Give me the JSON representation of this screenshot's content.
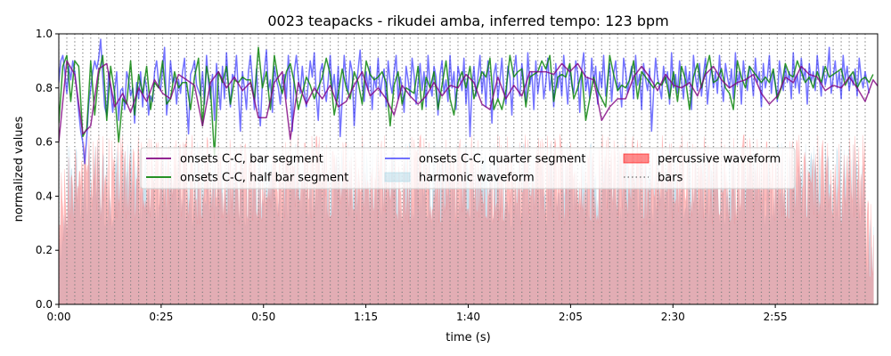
{
  "chart_data": {
    "type": "line",
    "title": "0023 teapacks - rikudei amba, inferred tempo: 123 bpm",
    "xlabel": "time (s)",
    "ylabel": "normalized values",
    "xlim": [
      0,
      200
    ],
    "ylim": [
      0,
      1.0
    ],
    "x_ticks": [
      0,
      25,
      50,
      75,
      100,
      125,
      150,
      175
    ],
    "x_tick_labels": [
      "0:00",
      "0:25",
      "0:50",
      "1:15",
      "1:40",
      "2:05",
      "2:30",
      "2:55"
    ],
    "y_ticks": [
      0.0,
      0.2,
      0.4,
      0.6,
      0.8,
      1.0
    ],
    "y_tick_labels": [
      "0.0",
      "0.2",
      "0.4",
      "0.6",
      "0.8",
      "1.0"
    ],
    "grid": false,
    "legend_placement": "center",
    "legend": [
      {
        "label": "onsets C-C, bar segment",
        "kind": "line",
        "color": "#800080"
      },
      {
        "label": "onsets C-C, half bar segment",
        "kind": "line",
        "color": "#008000"
      },
      {
        "label": "onsets C-C, quarter segment",
        "kind": "line",
        "color": "#0000ff"
      },
      {
        "label": "harmonic waveform",
        "kind": "patch",
        "color": "#add8e6"
      },
      {
        "label": "percussive waveform",
        "kind": "patch",
        "color": "#ff0000"
      },
      {
        "label": "bars",
        "kind": "dotted",
        "color": "#808080"
      }
    ],
    "bars": {
      "start": 0,
      "end": 197.5,
      "interval": 1.95
    },
    "series": [
      {
        "name": "onsets C-C, bar segment",
        "color": "#800080",
        "x0": 0,
        "dx": 1.95,
        "values": [
          0.6,
          0.9,
          0.85,
          0.63,
          0.66,
          0.87,
          0.89,
          0.73,
          0.78,
          0.71,
          0.8,
          0.75,
          0.83,
          0.78,
          0.76,
          0.85,
          0.83,
          0.81,
          0.66,
          0.82,
          0.86,
          0.8,
          0.84,
          0.79,
          0.82,
          0.69,
          0.69,
          0.82,
          0.86,
          0.61,
          0.82,
          0.74,
          0.8,
          0.76,
          0.81,
          0.73,
          0.75,
          0.81,
          0.86,
          0.77,
          0.8,
          0.76,
          0.7,
          0.81,
          0.77,
          0.74,
          0.77,
          0.82,
          0.77,
          0.81,
          0.8,
          0.85,
          0.82,
          0.74,
          0.72,
          0.84,
          0.76,
          0.81,
          0.77,
          0.86,
          0.86,
          0.86,
          0.85,
          0.89,
          0.86,
          0.89,
          0.84,
          0.83,
          0.68,
          0.73,
          0.76,
          0.76,
          0.84,
          0.88,
          0.84,
          0.79,
          0.85,
          0.81,
          0.8,
          0.82,
          0.77,
          0.85,
          0.88,
          0.83,
          0.8,
          0.82,
          0.83,
          0.85,
          0.78,
          0.74,
          0.77,
          0.84,
          0.82,
          0.88,
          0.85,
          0.84,
          0.79,
          0.81,
          0.8,
          0.84,
          0.8,
          0.75,
          0.83,
          0.79,
          0.77,
          0.85,
          0.83,
          0.78,
          0.84,
          0.8,
          0.82,
          0.73,
          0.74,
          0.78,
          0.85,
          0.8,
          0.83,
          0.86,
          0.81,
          0.84,
          0.82,
          0.87,
          0.79,
          0.86,
          0.85,
          0.82,
          0.8,
          0.86,
          0.83,
          0.84,
          0.82,
          0.83,
          0.75,
          0.73,
          0.8,
          0.84,
          0.86,
          0.8,
          0.81,
          0.85,
          0.82,
          0.78,
          0.84,
          0.83,
          0.82,
          0.8,
          0.85,
          0.82,
          0.86,
          0.81,
          0.86,
          0.84,
          0.82,
          0.83,
          0.79,
          0.85,
          0.86,
          0.83,
          0.8,
          0.82,
          0.86,
          0.84,
          0.85,
          0.79,
          0.81
        ]
      },
      {
        "name": "onsets C-C, half bar segment",
        "color": "#008000",
        "x0": 0,
        "dx": 0.975,
        "values": [
          0.67,
          0.88,
          0.92,
          0.75,
          0.9,
          0.88,
          0.62,
          0.65,
          0.9,
          0.7,
          0.85,
          0.92,
          0.68,
          0.88,
          0.78,
          0.6,
          0.76,
          0.74,
          0.9,
          0.7,
          0.85,
          0.78,
          0.88,
          0.72,
          0.82,
          0.8,
          0.9,
          0.74,
          0.76,
          0.86,
          0.8,
          0.82,
          0.82,
          0.72,
          0.84,
          0.91,
          0.66,
          0.88,
          0.8,
          0.55,
          0.86,
          0.82,
          0.88,
          0.74,
          0.83,
          0.82,
          0.84,
          0.83,
          0.83,
          0.76,
          0.95,
          0.8,
          0.86,
          0.72,
          0.92,
          0.83,
          0.78,
          0.86,
          0.89,
          0.82,
          0.72,
          0.78,
          0.84,
          0.81,
          0.76,
          0.8,
          0.84,
          0.91,
          0.85,
          0.7,
          0.78,
          0.87,
          0.8,
          0.76,
          0.86,
          0.82,
          0.74,
          0.9,
          0.85,
          0.83,
          0.84,
          0.86,
          0.82,
          0.66,
          0.81,
          0.86,
          0.74,
          0.8,
          0.79,
          0.78,
          0.88,
          0.72,
          0.84,
          0.8,
          0.86,
          0.72,
          0.81,
          0.9,
          0.76,
          0.7,
          0.82,
          0.86,
          0.8,
          0.88,
          0.76,
          0.81,
          0.86,
          0.84,
          0.91,
          0.72,
          0.76,
          0.72,
          0.79,
          0.92,
          0.84,
          0.86,
          0.87,
          0.73,
          0.84,
          0.85,
          0.86,
          0.9,
          0.87,
          0.92,
          0.75,
          0.84,
          0.85,
          0.84,
          0.89,
          0.76,
          0.8,
          0.86,
          0.68,
          0.76,
          0.84,
          0.79,
          0.76,
          0.73,
          0.92,
          0.85,
          0.79,
          0.81,
          0.8,
          0.83,
          0.9,
          0.76,
          0.86,
          0.84,
          0.82,
          0.8,
          0.82,
          0.81,
          0.84,
          0.76,
          0.86,
          0.75,
          0.88,
          0.83,
          0.72,
          0.84,
          0.89,
          0.8,
          0.86,
          0.92,
          0.82,
          0.83,
          0.87,
          0.8,
          0.78,
          0.72,
          0.9,
          0.84,
          0.8,
          0.88,
          0.86,
          0.84,
          0.82,
          0.84,
          0.82,
          0.87,
          0.76,
          0.8,
          0.89,
          0.85,
          0.84,
          0.9,
          0.86,
          0.82,
          0.84,
          0.8,
          0.86,
          0.82,
          0.88,
          0.84,
          0.85,
          0.86,
          0.87,
          0.81,
          0.84,
          0.86,
          0.8,
          0.83,
          0.84,
          0.82,
          0.85
        ]
      },
      {
        "name": "onsets C-C, quarter segment",
        "color": "#0000ff",
        "x0": 0,
        "dx": 0.4875,
        "values": [
          0.82,
          0.9,
          0.92,
          0.86,
          0.78,
          0.88,
          0.83,
          0.9,
          0.86,
          0.79,
          0.71,
          0.64,
          0.6,
          0.52,
          0.62,
          0.74,
          0.8,
          0.86,
          0.9,
          0.87,
          0.91,
          0.98,
          0.84,
          0.73,
          0.7,
          0.86,
          0.8,
          0.71,
          0.79,
          0.86,
          0.68,
          0.79,
          0.8,
          0.72,
          0.86,
          0.83,
          0.77,
          0.8,
          0.67,
          0.82,
          0.76,
          0.86,
          0.73,
          0.84,
          0.8,
          0.7,
          0.77,
          0.75,
          0.86,
          0.9,
          0.82,
          0.79,
          0.87,
          0.95,
          0.7,
          0.78,
          0.9,
          0.82,
          0.84,
          0.74,
          0.83,
          0.78,
          0.86,
          0.91,
          0.74,
          0.63,
          0.85,
          0.87,
          0.9,
          0.81,
          0.79,
          0.77,
          0.86,
          0.74,
          0.92,
          0.82,
          0.76,
          0.85,
          0.68,
          0.89,
          0.8,
          0.72,
          0.88,
          0.76,
          0.93,
          0.8,
          0.73,
          0.85,
          0.83,
          0.92,
          0.78,
          0.64,
          0.86,
          0.8,
          0.72,
          0.86,
          0.92,
          0.83,
          0.72,
          0.87,
          0.74,
          0.66,
          0.82,
          0.86,
          0.94,
          0.79,
          0.83,
          0.71,
          0.88,
          0.83,
          0.8,
          0.74,
          0.84,
          0.85,
          0.76,
          0.92,
          0.81,
          0.64,
          0.86,
          0.92,
          0.84,
          0.78,
          0.88,
          0.79,
          0.73,
          0.82,
          0.9,
          0.84,
          0.93,
          0.77,
          0.68,
          0.86,
          0.89,
          0.8,
          0.75,
          0.83,
          0.92,
          0.79,
          0.85,
          0.74,
          0.88,
          0.62,
          0.76,
          0.92,
          0.83,
          0.78,
          0.9,
          0.86,
          0.66,
          0.8,
          0.87,
          0.94,
          0.81,
          0.75,
          0.86,
          0.79,
          0.88,
          0.72,
          0.84,
          0.8,
          0.91,
          0.77,
          0.83,
          0.87,
          0.73,
          0.9,
          0.82,
          0.78,
          0.86,
          0.92,
          0.76,
          0.84,
          0.8,
          0.71,
          0.88,
          0.83,
          0.77,
          0.91,
          0.85,
          0.74,
          0.82,
          0.89,
          0.79,
          0.86,
          0.73,
          0.92,
          0.81,
          0.77,
          0.88,
          0.84,
          0.7,
          0.85,
          0.9,
          0.78,
          0.83,
          0.75,
          0.92,
          0.8,
          0.86,
          0.72,
          0.88,
          0.84,
          0.79,
          0.91,
          0.74,
          0.85,
          0.62,
          0.8,
          0.88,
          0.77,
          0.84,
          0.92,
          0.78,
          0.86,
          0.73,
          0.9,
          0.81,
          0.67,
          0.85,
          0.89,
          0.76,
          0.83,
          0.91,
          0.79,
          0.74,
          0.88,
          0.84,
          0.7,
          0.86,
          0.92,
          0.8,
          0.77,
          0.89,
          0.82,
          0.75,
          0.93,
          0.81,
          0.86,
          0.72,
          0.9,
          0.78,
          0.84,
          0.88,
          0.76,
          0.82,
          0.91,
          0.79,
          0.85,
          0.73,
          0.89,
          0.8,
          0.86,
          0.77,
          0.92,
          0.83,
          0.74,
          0.88,
          0.81,
          0.78,
          0.9,
          0.85,
          0.71,
          0.87,
          0.93,
          0.79,
          0.84,
          0.76,
          0.91,
          0.82,
          0.88,
          0.74,
          0.86,
          0.8,
          0.92,
          0.77,
          0.83,
          0.89,
          0.75,
          0.85,
          0.9,
          0.79,
          0.82,
          0.73,
          0.91,
          0.86,
          0.78,
          0.84,
          0.88,
          0.76,
          0.92,
          0.81,
          0.85,
          0.72,
          0.89,
          0.83,
          0.79,
          0.87,
          0.64,
          0.78,
          0.91,
          0.84,
          0.8,
          0.76,
          0.88,
          0.82,
          0.86,
          0.74,
          0.93,
          0.8,
          0.85,
          0.78,
          0.9,
          0.83,
          0.76,
          0.88,
          0.81,
          0.86,
          0.72,
          0.92,
          0.84,
          0.79,
          0.89,
          0.77,
          0.85,
          0.91,
          0.74,
          0.83,
          0.88,
          0.8,
          0.86,
          0.78,
          0.92,
          0.82,
          0.75,
          0.89,
          0.84,
          0.8,
          0.87,
          0.76,
          0.93,
          0.81,
          0.86,
          0.74,
          0.9,
          0.83,
          0.79,
          0.88,
          0.85,
          0.77,
          0.91,
          0.82,
          0.86,
          0.73,
          0.89,
          0.8,
          0.84,
          0.92,
          0.78,
          0.86,
          0.81,
          0.75,
          0.9,
          0.84,
          0.79,
          0.88,
          0.82,
          0.86,
          0.76,
          0.93,
          0.8,
          0.85,
          0.78,
          0.91,
          0.83,
          0.87,
          0.74,
          0.89,
          0.82,
          0.86,
          0.79,
          0.92,
          0.84,
          0.77,
          0.88,
          0.81,
          0.85,
          0.95,
          0.78,
          0.84,
          0.9,
          0.8,
          0.86,
          0.76,
          0.92,
          0.83,
          0.88,
          0.79,
          0.85,
          0.81,
          0.87,
          0.77,
          0.91,
          0.84,
          0.8,
          0.86,
          0.82,
          0.78
        ]
      }
    ]
  }
}
